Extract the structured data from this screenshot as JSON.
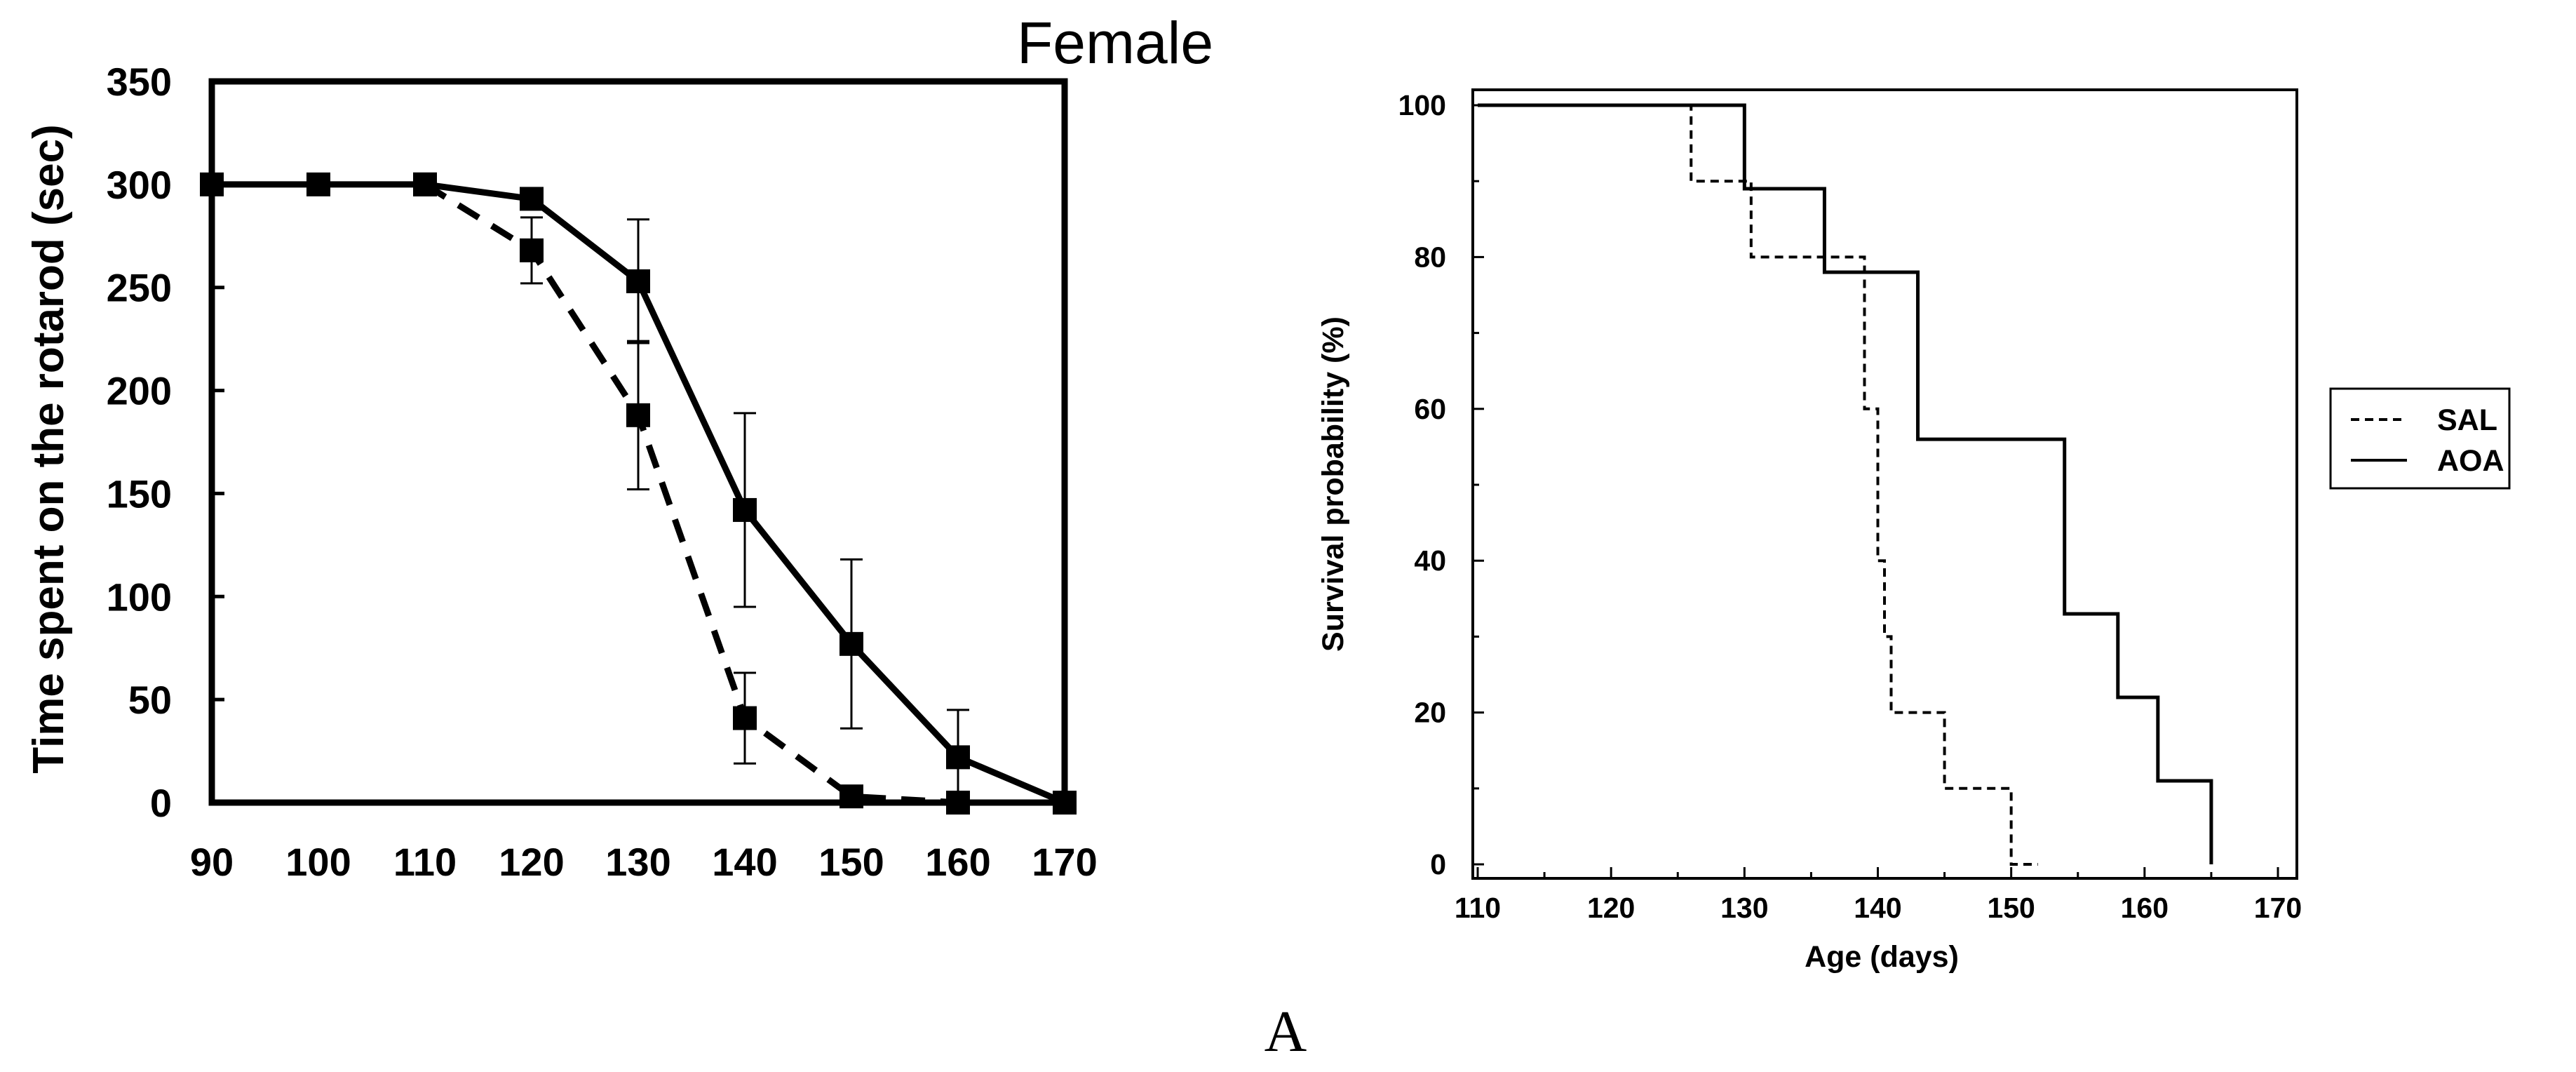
{
  "panel_title": "Female",
  "panel_caption": "A",
  "colors": {
    "ink": "#000000",
    "background": "#ffffff"
  },
  "chart_data": [
    {
      "type": "line",
      "title": "Female",
      "xlabel": "",
      "ylabel": "Time spent on the rotarod (sec)",
      "xlim": [
        90,
        170
      ],
      "ylim": [
        0,
        350
      ],
      "xticks": [
        90,
        100,
        110,
        120,
        130,
        140,
        150,
        160,
        170
      ],
      "yticks": [
        0,
        50,
        100,
        150,
        200,
        250,
        300,
        350
      ],
      "grid": false,
      "series": [
        {
          "name": "solid",
          "style": "solid",
          "marker": "square",
          "x": [
            90,
            100,
            110,
            120,
            130,
            140,
            150,
            160,
            170
          ],
          "y": [
            300,
            300,
            300,
            293,
            253,
            142,
            77,
            22,
            0
          ],
          "error": [
            0,
            0,
            0,
            0,
            30,
            47,
            41,
            23,
            0
          ]
        },
        {
          "name": "dashed",
          "style": "dashed",
          "marker": "square",
          "x": [
            110,
            120,
            130,
            140,
            150,
            160,
            170
          ],
          "y": [
            300,
            268,
            188,
            41,
            3,
            0,
            0
          ],
          "error": [
            0,
            16,
            36,
            22,
            0,
            0,
            0
          ]
        }
      ]
    },
    {
      "type": "line",
      "subtype": "step",
      "title": "",
      "xlabel": "Age (days)",
      "ylabel": "Survival probability (%)",
      "xlim": [
        110,
        170
      ],
      "ylim": [
        0,
        100
      ],
      "xticks": [
        110,
        120,
        130,
        140,
        150,
        160,
        170
      ],
      "yticks": [
        0,
        20,
        40,
        60,
        80,
        100
      ],
      "grid": false,
      "legend": {
        "placement": "right",
        "entries": [
          "SAL",
          "AOA"
        ]
      },
      "series": [
        {
          "name": "SAL",
          "style": "dashed",
          "times": [
            126,
            130.5,
            139,
            140,
            140.5,
            141,
            145,
            150,
            152
          ],
          "steps": [
            100,
            90,
            80,
            60,
            40,
            30,
            20,
            10,
            0
          ]
        },
        {
          "name": "AOA",
          "style": "solid",
          "times": [
            130,
            136,
            143,
            154,
            158,
            161,
            165
          ],
          "steps": [
            100,
            89,
            78,
            56,
            33,
            22,
            11,
            0
          ]
        }
      ]
    }
  ]
}
